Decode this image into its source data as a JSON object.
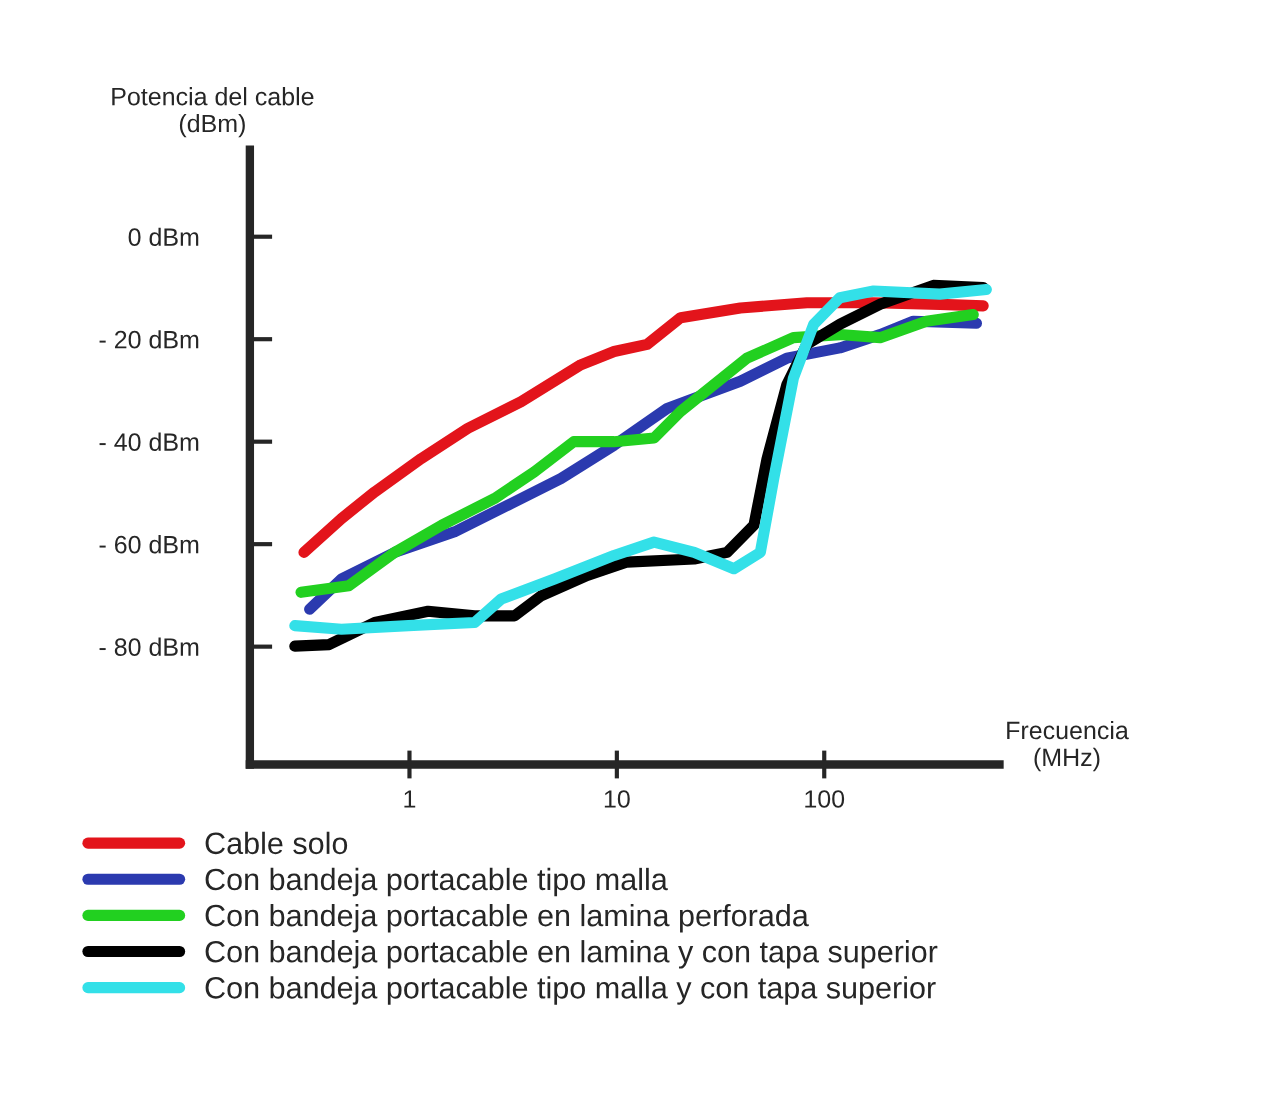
{
  "chart_data": {
    "type": "line",
    "xlabel": "Frecuencia\n(MHz)",
    "ylabel": "Potencia del cable\n(dBm)",
    "log": "x",
    "xlim": [
      0.17,
      700
    ],
    "ylim": [
      -103,
      17
    ],
    "xticks": [
      1,
      10,
      100
    ],
    "yticks": [
      {
        "value": 0,
        "label": "0 dBm"
      },
      {
        "value": -20,
        "label": "- 20 dBm"
      },
      {
        "value": -40,
        "label": "- 40 dBm"
      },
      {
        "value": -60,
        "label": "- 60 dBm"
      },
      {
        "value": -80,
        "label": "- 80 dBm"
      }
    ],
    "grid": false,
    "legend": "bottom",
    "marker": "none",
    "line_style": "solid",
    "series": [
      {
        "name": "Cable solo",
        "color": "#e3141b",
        "x": [
          0.31,
          0.47,
          0.68,
          1.14,
          1.91,
          3.45,
          6.7,
          9.7,
          14,
          20.3,
          39.4,
          82.5,
          173,
          361,
          584
        ],
        "values": [
          -61.6,
          -55.0,
          -49.8,
          -43.3,
          -37.4,
          -32.2,
          -25.0,
          -22.4,
          -21.0,
          -15.8,
          -13.9,
          -12.9,
          -12.9,
          -13.2,
          -13.5
        ]
      },
      {
        "name": "Con bandeja portacable tipo malla",
        "color": "#2b3aaf",
        "x": [
          0.33,
          0.47,
          0.85,
          1.65,
          2.98,
          5.38,
          9.7,
          17.5,
          39.4,
          66,
          119,
          186,
          269,
          542
        ],
        "values": [
          -72.7,
          -66.8,
          -61.6,
          -57.6,
          -52.4,
          -47.2,
          -40.7,
          -33.5,
          -28.2,
          -23.7,
          -21.7,
          -19.1,
          -16.5,
          -16.9
        ]
      },
      {
        "name": "Con bandeja portacable en lamina perforada",
        "color": "#22d020",
        "x": [
          0.3,
          0.51,
          0.85,
          1.43,
          2.57,
          4.0,
          6.2,
          9.7,
          15.1,
          20.3,
          42.4,
          71,
          119,
          186,
          311,
          523
        ],
        "values": [
          -69.4,
          -68.1,
          -61.6,
          -56.3,
          -51.1,
          -45.9,
          -40.0,
          -40.0,
          -39.3,
          -34.1,
          -23.7,
          -19.7,
          -19.1,
          -19.7,
          -16.5,
          -15.2
        ]
      },
      {
        "name": "Con bandeja portacable en lamina y con tapa superior",
        "color": "#000000",
        "x": [
          0.28,
          0.41,
          0.68,
          1.23,
          2.06,
          3.21,
          4.31,
          7.2,
          11.2,
          23.6,
          34,
          45.8,
          53,
          66,
          82.5,
          119,
          186,
          336,
          584
        ],
        "values": [
          -79.9,
          -79.6,
          -75.3,
          -73.1,
          -74.0,
          -74.0,
          -70.1,
          -66.1,
          -63.5,
          -62.9,
          -61.6,
          -56.3,
          -43.3,
          -28.9,
          -21.0,
          -17.1,
          -13.2,
          -9.5,
          -9.9
        ]
      },
      {
        "name": "Con bandeja portacable tipo malla y con tapa superior",
        "color": "#33e0e8",
        "x": [
          0.28,
          0.47,
          0.99,
          2.06,
          2.77,
          5.0,
          9.7,
          15.1,
          23.6,
          36.7,
          49.2,
          57.1,
          71,
          88.9,
          119,
          173,
          361,
          605
        ],
        "values": [
          -75.9,
          -76.6,
          -75.9,
          -75.3,
          -70.7,
          -66.8,
          -62.2,
          -59.6,
          -61.6,
          -64.8,
          -61.6,
          -47.2,
          -27.6,
          -17.1,
          -11.9,
          -10.6,
          -11.2,
          -10.3
        ]
      }
    ]
  }
}
